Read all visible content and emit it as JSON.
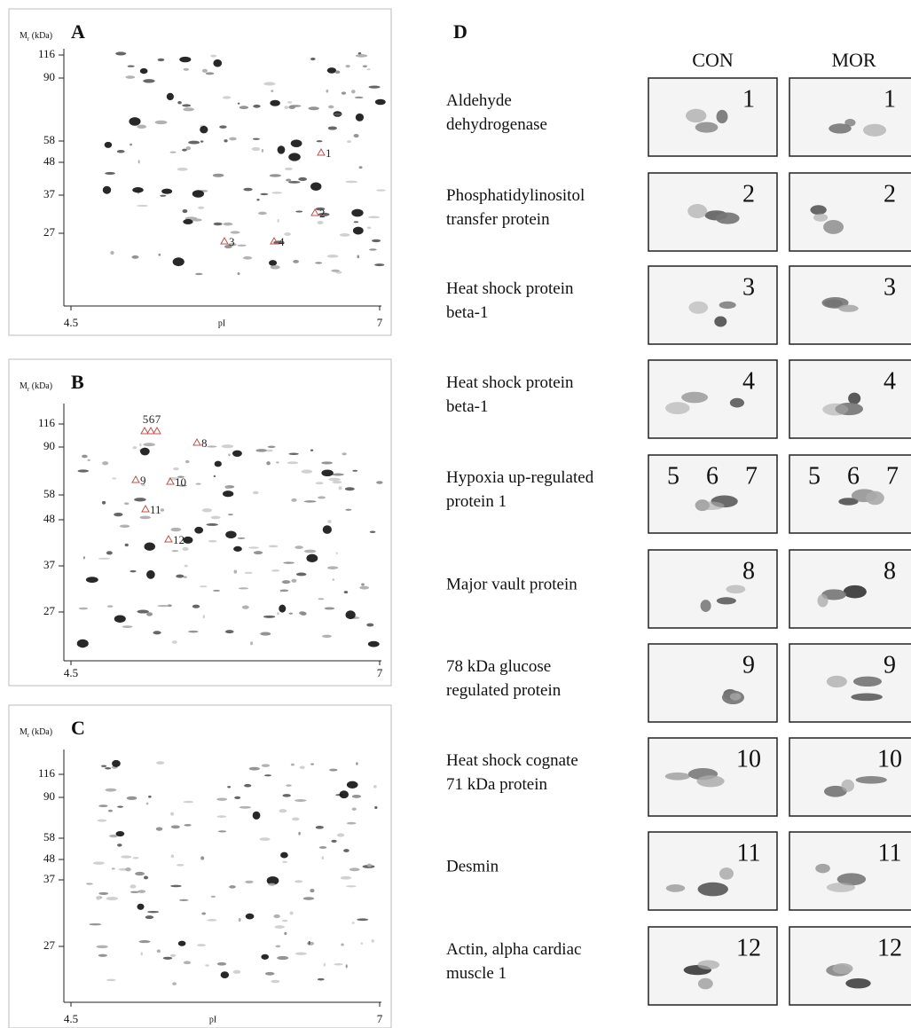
{
  "panels": [
    {
      "label": "A",
      "y_label": [
        "M",
        "r",
        " (kDa)"
      ],
      "yticks": [
        "116",
        "90",
        "58",
        "48",
        "37",
        "27"
      ],
      "xticks": [
        "4.5",
        "7"
      ],
      "x_label": "pI",
      "markers": [
        "1",
        "2",
        "3",
        "4"
      ]
    },
    {
      "label": "B",
      "y_label": [
        "M",
        "r",
        " (kDa)"
      ],
      "yticks": [
        "116",
        "90",
        "58",
        "48",
        "37",
        "27"
      ],
      "xticks": [
        "4.5",
        "7"
      ],
      "markers": [
        "5",
        "6",
        "7",
        "8",
        "9",
        "10",
        "11",
        "12"
      ]
    },
    {
      "label": "C",
      "y_label": [
        "M",
        "r",
        " (kDa)"
      ],
      "yticks": [
        "116",
        "90",
        "58",
        "48",
        "37",
        "27"
      ],
      "xticks": [
        "4.5",
        "7"
      ],
      "x_label": "pI"
    }
  ],
  "detail": {
    "label": "D",
    "columns": [
      "CON",
      "MOR"
    ],
    "rows": [
      {
        "name": [
          "Aldehyde",
          "dehydrogenase"
        ],
        "spots": [
          "1"
        ]
      },
      {
        "name": [
          "Phosphatidylinositol",
          "transfer protein"
        ],
        "spots": [
          "2"
        ]
      },
      {
        "name": [
          "Heat shock protein",
          "beta-1"
        ],
        "spots": [
          "3"
        ]
      },
      {
        "name": [
          "Heat shock protein",
          "beta-1"
        ],
        "spots": [
          "4"
        ]
      },
      {
        "name": [
          "Hypoxia up-regulated",
          "protein 1"
        ],
        "spots": [
          "5",
          "6",
          "7"
        ]
      },
      {
        "name": [
          "Major vault protein"
        ],
        "spots": [
          "8"
        ]
      },
      {
        "name": [
          "78 kDa glucose",
          "regulated protein"
        ],
        "spots": [
          "9"
        ]
      },
      {
        "name": [
          "Heat shock cognate",
          "71 kDa protein"
        ],
        "spots": [
          "10"
        ]
      },
      {
        "name": [
          "Desmin"
        ],
        "spots": [
          "11"
        ]
      },
      {
        "name": [
          "Actin, alpha cardiac",
          "muscle 1"
        ],
        "spots": [
          "12"
        ]
      }
    ]
  }
}
